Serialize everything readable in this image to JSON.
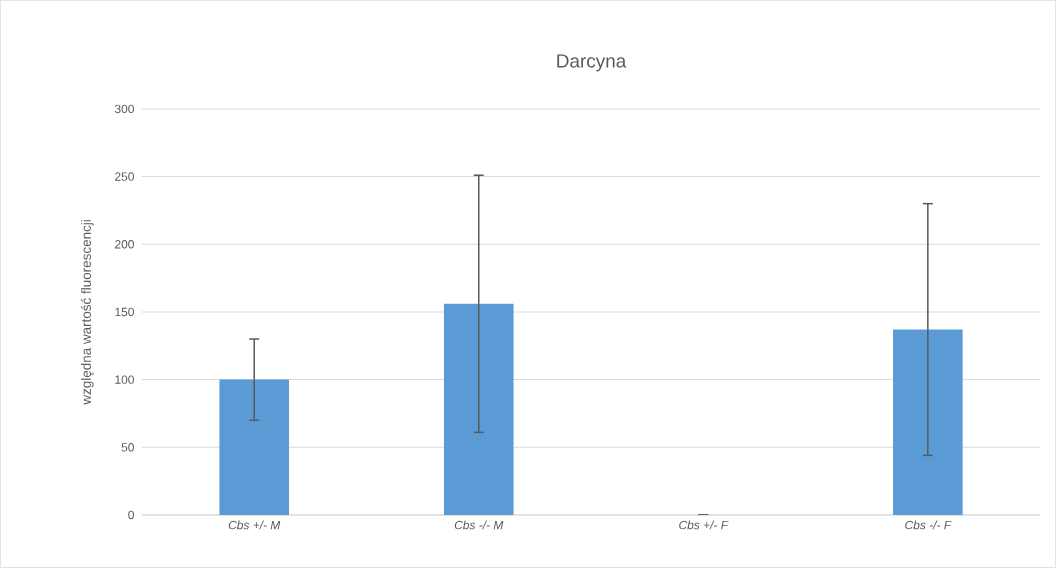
{
  "chart_data": {
    "type": "bar",
    "title": "Darcyna",
    "ylabel": "względna wartość fluorescencji",
    "categories": [
      "Cbs +/- M",
      "Cbs -/- M",
      "Cbs +/- F",
      "Cbs -/- F"
    ],
    "values": [
      100,
      156,
      0,
      137
    ],
    "errors": [
      30,
      95,
      0,
      93
    ],
    "color": "#5b9bd5",
    "ylim": [
      0,
      300
    ],
    "yticks": [
      0,
      50,
      100,
      150,
      200,
      250,
      300
    ],
    "grid": "y"
  }
}
